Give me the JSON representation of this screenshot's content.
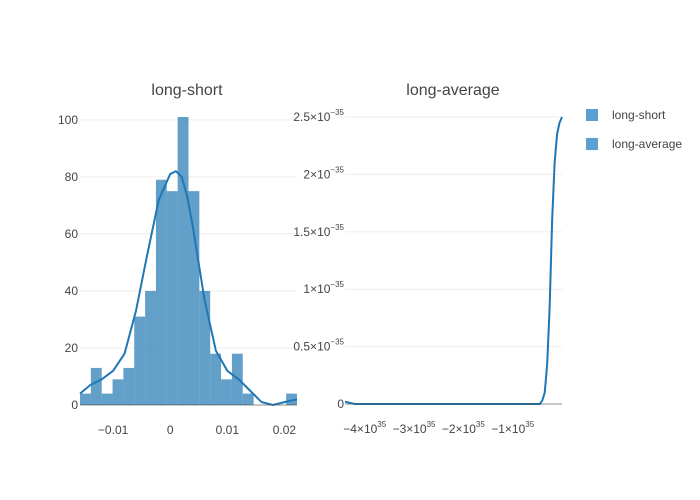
{
  "colors": {
    "bar": "#1f77b4",
    "line": "#1f77b4",
    "legend_marker": "#5b9fd1"
  },
  "legend": {
    "placement": "top-right",
    "items": [
      "long-short",
      "long-average"
    ]
  },
  "chart_data": [
    {
      "type": "bar",
      "title": "long-short",
      "xlabel": "",
      "ylabel": "",
      "xlim": [
        -0.0158,
        0.0222
      ],
      "ylim": [
        0,
        101
      ],
      "grid": true,
      "x_ticks": [
        -0.01,
        0,
        0.01,
        0.02
      ],
      "x_tick_labels": [
        "−0.01",
        "0",
        "0.01",
        "0.02"
      ],
      "y_ticks": [
        0,
        20,
        40,
        60,
        80,
        100
      ],
      "y_tick_labels": [
        "0",
        "20",
        "40",
        "60",
        "80",
        "100"
      ],
      "bins": [
        {
          "x0": -0.0158,
          "x1": -0.0139,
          "count": 4
        },
        {
          "x0": -0.0139,
          "x1": -0.012,
          "count": 13
        },
        {
          "x0": -0.012,
          "x1": -0.0101,
          "count": 4
        },
        {
          "x0": -0.0101,
          "x1": -0.0082,
          "count": 9
        },
        {
          "x0": -0.0082,
          "x1": -0.0063,
          "count": 13
        },
        {
          "x0": -0.0063,
          "x1": -0.0044,
          "count": 31
        },
        {
          "x0": -0.0044,
          "x1": -0.0025,
          "count": 40
        },
        {
          "x0": -0.0025,
          "x1": -0.0006,
          "count": 79
        },
        {
          "x0": -0.0006,
          "x1": 0.0013,
          "count": 75
        },
        {
          "x0": 0.0013,
          "x1": 0.0032,
          "count": 101
        },
        {
          "x0": 0.0032,
          "x1": 0.0051,
          "count": 75
        },
        {
          "x0": 0.0051,
          "x1": 0.007,
          "count": 40
        },
        {
          "x0": 0.007,
          "x1": 0.0089,
          "count": 18
        },
        {
          "x0": 0.0089,
          "x1": 0.0108,
          "count": 9
        },
        {
          "x0": 0.0108,
          "x1": 0.0127,
          "count": 18
        },
        {
          "x0": 0.0127,
          "x1": 0.0146,
          "count": 4
        },
        {
          "x0": 0.0146,
          "x1": 0.0165,
          "count": 0
        },
        {
          "x0": 0.0165,
          "x1": 0.0184,
          "count": 0
        },
        {
          "x0": 0.0184,
          "x1": 0.0203,
          "count": 0
        },
        {
          "x0": 0.0203,
          "x1": 0.0222,
          "count": 4
        }
      ],
      "density_curve": {
        "x": [
          -0.0158,
          -0.014,
          -0.012,
          -0.01,
          -0.008,
          -0.006,
          -0.004,
          -0.002,
          0.0,
          0.001,
          0.002,
          0.003,
          0.004,
          0.006,
          0.008,
          0.01,
          0.012,
          0.014,
          0.016,
          0.018,
          0.02,
          0.0222
        ],
        "y": [
          4,
          7,
          9,
          12,
          18,
          33,
          53,
          72,
          81,
          82,
          80,
          73,
          62,
          37,
          19,
          12,
          9,
          5,
          1,
          0,
          1,
          2
        ]
      }
    },
    {
      "type": "line",
      "title": "long-average",
      "xlabel": "",
      "ylabel": "",
      "x_exp": 35,
      "y_exp": -35,
      "xlim": [
        -4.4,
        0.0
      ],
      "ylim": [
        0,
        2.5
      ],
      "grid": true,
      "x_ticks": [
        -4,
        -3,
        -2,
        -1
      ],
      "x_tick_labels": [
        {
          "base": "−4×10",
          "exp": "35"
        },
        {
          "base": "−3×10",
          "exp": "35"
        },
        {
          "base": "−2×10",
          "exp": "35"
        },
        {
          "base": "−1×10",
          "exp": "35"
        }
      ],
      "y_ticks": [
        0,
        0.5,
        1,
        1.5,
        2,
        2.5
      ],
      "y_tick_labels": [
        {
          "base": "0",
          "exp": ""
        },
        {
          "base": "0.5×10",
          "exp": "−35"
        },
        {
          "base": "1×10",
          "exp": "−35"
        },
        {
          "base": "1.5×10",
          "exp": "−35"
        },
        {
          "base": "2×10",
          "exp": "−35"
        },
        {
          "base": "2.5×10",
          "exp": "−35"
        }
      ],
      "series": [
        {
          "x": [
            -4.4,
            -4.3,
            -4.2,
            -4.0,
            -3.5,
            -3.0,
            -2.5,
            -2.0,
            -1.5,
            -1.0,
            -0.6,
            -0.45,
            -0.4,
            -0.35,
            -0.3,
            -0.25,
            -0.2,
            -0.15,
            -0.1,
            -0.05,
            0.0
          ],
          "y": [
            0.02,
            0.01,
            0.0,
            0.0,
            0.0,
            0.0,
            0.0,
            0.0,
            0.0,
            0.0,
            0.0,
            0.0,
            0.03,
            0.1,
            0.35,
            0.85,
            1.6,
            2.1,
            2.35,
            2.45,
            2.5
          ]
        }
      ]
    }
  ]
}
